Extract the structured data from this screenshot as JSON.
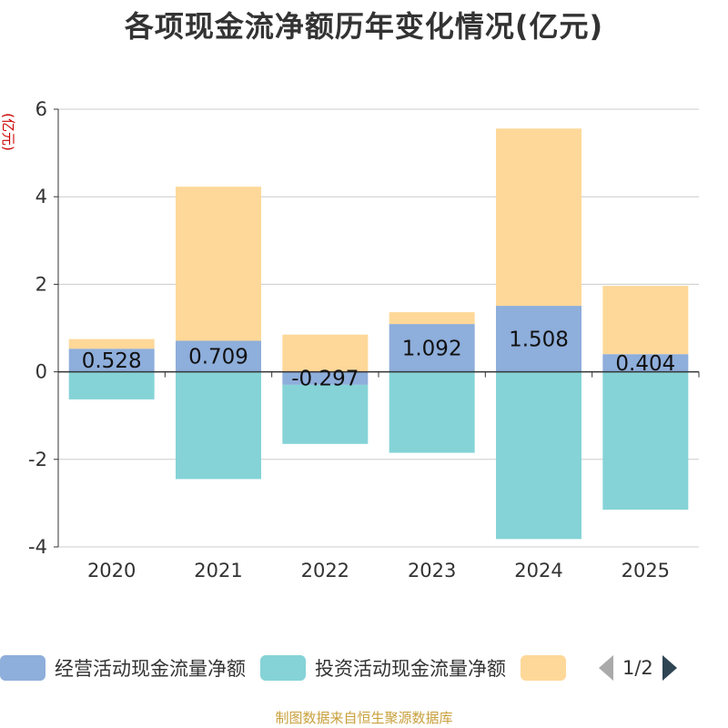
{
  "title": "各项现金流净额历年变化情况(亿元)",
  "footer": "制图数据来自恒生聚源数据库",
  "legend_page": "1/2",
  "colors": {
    "operating": "#8eaedb",
    "investing": "#85d3d7",
    "financing": "#fed899",
    "axis": "#333333",
    "grid": "#cccccc",
    "unit": "#cc0000"
  },
  "chart_data": {
    "type": "bar",
    "stacked": true,
    "title": "各项现金流净额历年变化情况(亿元)",
    "ylabel": "(亿元)",
    "ylim": [
      -4,
      6
    ],
    "yticks": [
      -4,
      -2,
      0,
      2,
      4,
      6
    ],
    "ytick_labels": [
      "-4",
      "-2",
      "0",
      "2",
      "4",
      "6"
    ],
    "categories": [
      "2020",
      "2021",
      "2022",
      "2023",
      "2024",
      "2025"
    ],
    "series": [
      {
        "name": "经营活动现金流量净额",
        "color": "#8eaedb",
        "values": [
          0.528,
          0.709,
          -0.297,
          1.092,
          1.508,
          0.404
        ],
        "labels": [
          "0.528",
          "0.709",
          "-0.297",
          "1.092",
          "1.508",
          "0.404"
        ]
      },
      {
        "name": "投资活动现金流量净额",
        "color": "#85d3d7",
        "values": [
          -0.63,
          -2.45,
          -1.35,
          -1.85,
          -3.82,
          -3.15
        ]
      },
      {
        "name": "",
        "color": "#fed899",
        "values": [
          0.22,
          3.52,
          0.85,
          0.27,
          4.05,
          1.56
        ]
      }
    ]
  }
}
